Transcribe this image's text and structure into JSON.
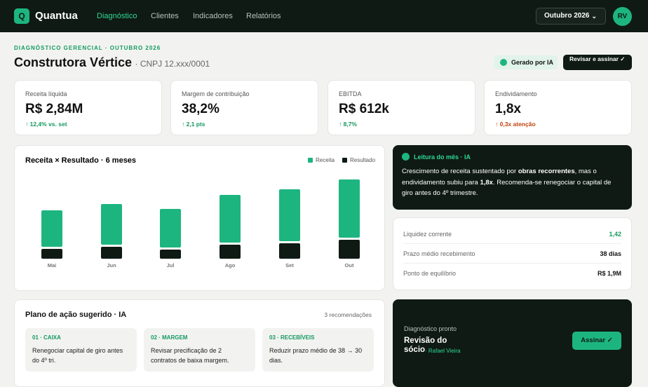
{
  "nav": {
    "logo": "Q",
    "brand": "Quantua",
    "links": [
      "Diagnóstico",
      "Clientes",
      "Indicadores",
      "Relatórios"
    ],
    "period": "Outubro 2026",
    "avatar": "RV"
  },
  "header": {
    "eyebrow": "DIAGNÓSTICO GERENCIAL · OUTUBRO 2026",
    "company": "Construtora Vértice",
    "cnpj": "· CNPJ 12.xxx/0001",
    "badge": "Gerado por IA",
    "button": "Revisar e assinar ✓"
  },
  "kpis": [
    {
      "label": "Receita líquida",
      "value": "R$ 2,84M",
      "delta": "↑ 12,4% vs. set",
      "color": "#14995f"
    },
    {
      "label": "Margem de contribuição",
      "value": "38,2%",
      "delta": "↑ 2,1 pts",
      "color": "#14995f"
    },
    {
      "label": "EBITDA",
      "value": "R$ 612k",
      "delta": "↑ 8,7%",
      "color": "#14995f"
    },
    {
      "label": "Endividamento",
      "value": "1,8x",
      "delta": "↑ 0,3x atenção",
      "color": "#c2410c"
    }
  ],
  "chart_data": {
    "type": "bar",
    "stacked": true,
    "title": "Receita × Resultado · 6 meses",
    "categories": [
      "Mai",
      "Jun",
      "Jul",
      "Ago",
      "Set",
      "Out"
    ],
    "series": [
      {
        "name": "Resultado",
        "color": "#0f1a14",
        "values": [
          14,
          17,
          13,
          20,
          22,
          27
        ]
      },
      {
        "name": "Receita",
        "color": "#1db57f",
        "values": [
          52,
          58,
          55,
          68,
          74,
          83
        ]
      }
    ],
    "ylim": [
      0,
      120
    ]
  },
  "insight": {
    "title": "Leitura do mês · IA",
    "text": [
      "Crescimento de receita sustentado por ",
      "obras recorrentes",
      ", mas o endividamento subiu para ",
      "1,8x",
      ". Recomenda-se renegociar o capital de giro antes do 4º trimestre."
    ]
  },
  "metrics": [
    {
      "label": "Liquidez corrente",
      "value": "1,42",
      "color": "#14995f"
    },
    {
      "label": "Prazo médio recebimento",
      "value": "38 dias",
      "color": "#111"
    },
    {
      "label": "Ponto de equilíbrio",
      "value": "R$ 1,9M",
      "color": "#111"
    }
  ],
  "plan": {
    "title": "Plano de ação sugerido · IA",
    "count": "3 recomendações",
    "items": [
      {
        "tag": "01 · CAIXA",
        "text": "Renegociar capital de giro antes do 4º tri."
      },
      {
        "tag": "02 · MARGEM",
        "text": "Revisar precificação de 2 contratos de baixa margem."
      },
      {
        "tag": "03 · RECEBÍVEIS",
        "text": "Reduzir prazo médio de 38 → 30 dias."
      }
    ]
  },
  "sign": {
    "label": "Diagnóstico pronto",
    "title": "Revisão do sócio",
    "name": "· Rafael Vieira",
    "button": "Assinar ✓"
  }
}
